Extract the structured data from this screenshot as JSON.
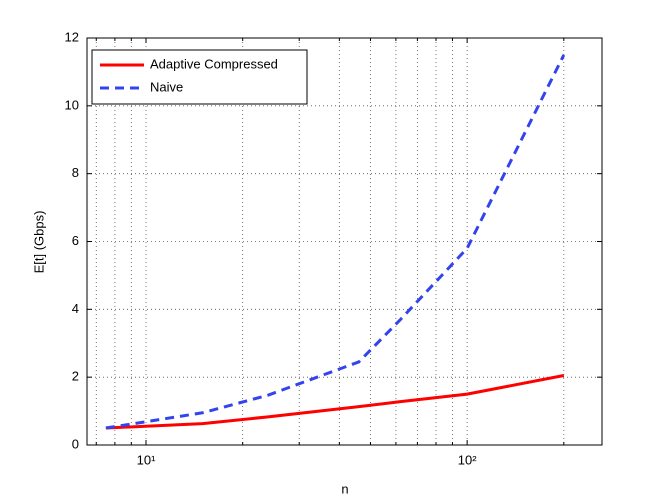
{
  "chart_data": {
    "type": "line",
    "xlabel": "n",
    "ylabel": "E[t] (Gbps)",
    "x": [
      7.5,
      15,
      24,
      46,
      62,
      100,
      200
    ],
    "series": [
      {
        "name": "Adaptive Compressed",
        "color": "#ff0000",
        "dash": false,
        "values": [
          0.5,
          0.63,
          0.83,
          1.13,
          1.28,
          1.5,
          2.05
        ]
      },
      {
        "name": "Naive",
        "color": "#3344ee",
        "dash": true,
        "values": [
          0.5,
          0.95,
          1.47,
          2.45,
          3.7,
          5.8,
          11.5
        ]
      }
    ],
    "log_x": true,
    "xlim": [
      6.55,
      263
    ],
    "ylim": [
      0,
      12
    ],
    "xticks": [
      {
        "value": 10,
        "label": "10¹"
      },
      {
        "value": 100,
        "label": "10²"
      }
    ],
    "xminorticks": [
      7,
      8,
      9,
      20,
      30,
      40,
      50,
      60,
      70,
      80,
      90,
      200
    ],
    "yticks": [
      0,
      2,
      4,
      6,
      8,
      10,
      12
    ],
    "grid": true,
    "legend": "upper left"
  }
}
